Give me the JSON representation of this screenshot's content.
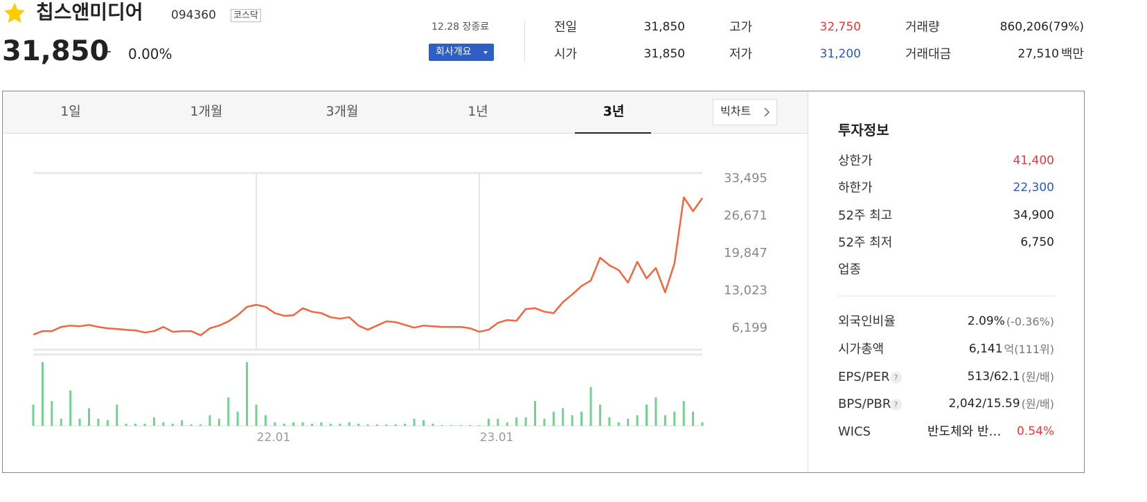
{
  "header": {
    "name": "칩스앤미디어",
    "code": "094360",
    "market": "코스닥",
    "price": "31,850",
    "change_sign": "–",
    "change_rate": "0.00%",
    "status": "12.28 장종료",
    "company_button": "회사개요"
  },
  "summary": [
    {
      "label": "전일",
      "value": "31,850"
    },
    {
      "label": "고가",
      "value": "32,750",
      "color": "#f0353a"
    },
    {
      "label": "거래량",
      "value": "860,206(79%)"
    },
    {
      "label": "시가",
      "value": "31,850"
    },
    {
      "label": "저가",
      "value": "31,200",
      "color": "#2b59c3"
    },
    {
      "label": "거래대금",
      "value": "27,510",
      "unit": "백만"
    }
  ],
  "tabs": {
    "items": [
      "1일",
      "1개월",
      "3개월",
      "1년",
      "3년"
    ],
    "active": 4,
    "big_chart": "빅차트"
  },
  "chart_data": {
    "type": "line",
    "color": "#f5643c",
    "categories": [
      null,
      null,
      null,
      null,
      null,
      null,
      null,
      null,
      null,
      null,
      null,
      null,
      null,
      null,
      null,
      null,
      null,
      null,
      null,
      null,
      null,
      null,
      null,
      null,
      "22.01",
      null,
      null,
      null,
      null,
      null,
      null,
      null,
      null,
      null,
      null,
      null,
      null,
      null,
      null,
      null,
      null,
      null,
      null,
      null,
      null,
      null,
      null,
      null,
      "23.01",
      null,
      null,
      null,
      null,
      null,
      null,
      null,
      null,
      null,
      null,
      null,
      null,
      null,
      null,
      null,
      null,
      null,
      null,
      null,
      null,
      null,
      null,
      null,
      null
    ],
    "values": [
      5050,
      5690,
      5690,
      6450,
      6700,
      6570,
      6820,
      6450,
      6200,
      6070,
      5940,
      5810,
      5430,
      5690,
      6450,
      5560,
      5690,
      5690,
      4930,
      6200,
      6700,
      7460,
      8590,
      10100,
      10490,
      10100,
      8970,
      8470,
      8590,
      9860,
      9220,
      8970,
      8210,
      7960,
      8210,
      6700,
      5940,
      6700,
      7460,
      7330,
      6820,
      6320,
      6700,
      6570,
      6450,
      6450,
      6450,
      6200,
      5560,
      5940,
      7200,
      7710,
      7580,
      9730,
      9860,
      9220,
      8970,
      10990,
      12380,
      13900,
      14900,
      19080,
      17690,
      16810,
      14530,
      18320,
      15290,
      17190,
      12760,
      18060,
      30080,
      27550,
      29950
    ],
    "ylim": [
      2300,
      34500
    ],
    "yticks": [
      {
        "value": 33495,
        "label": "33,495"
      },
      {
        "value": 26671,
        "label": "26,671"
      },
      {
        "value": 19847,
        "label": "19,847"
      },
      {
        "value": 13023,
        "label": "13,023"
      },
      {
        "value": 6199,
        "label": "6,199"
      }
    ],
    "volume": {
      "color": "#6fd28f",
      "values": [
        30,
        90,
        35,
        10,
        50,
        10,
        25,
        10,
        8,
        30,
        3,
        3,
        3,
        12,
        5,
        3,
        8,
        2,
        2,
        15,
        10,
        40,
        20,
        90,
        30,
        15,
        5,
        3,
        5,
        5,
        3,
        5,
        3,
        3,
        5,
        3,
        2,
        2,
        2,
        2,
        3,
        10,
        8,
        3,
        1,
        1,
        1,
        1,
        1,
        10,
        10,
        5,
        12,
        12,
        35,
        10,
        20,
        25,
        15,
        20,
        55,
        30,
        12,
        5,
        10,
        15,
        30,
        40,
        15,
        20,
        35,
        20,
        5
      ]
    }
  },
  "investment": {
    "title": "투자정보",
    "help_icon": "?",
    "rows": [
      {
        "label": "상한가",
        "value": "41,400",
        "color": "#f0353a"
      },
      {
        "label": "하한가",
        "value": "22,300",
        "color": "#2b59c3"
      },
      {
        "label": "52주 최고",
        "value": "34,900"
      },
      {
        "label": "52주 최저",
        "value": "6,750"
      },
      {
        "label": "업종"
      }
    ],
    "rows2": [
      {
        "label": "외국인비율",
        "value": "2.09%",
        "unit": "(-0.36%)"
      },
      {
        "label": "시가총액",
        "value": "6,141",
        "unit": "억(111위)"
      },
      {
        "label": "EPS/PER",
        "help": true,
        "value": "513/62.1",
        "unit": "(원/배)"
      },
      {
        "label": "BPS/PBR",
        "help": true,
        "value": "2,042/15.59",
        "unit": "(원/배)"
      },
      {
        "label": "WICS",
        "value": "반도체와 반…",
        "change": "0.54%",
        "change_color": "#f0353a"
      }
    ]
  }
}
